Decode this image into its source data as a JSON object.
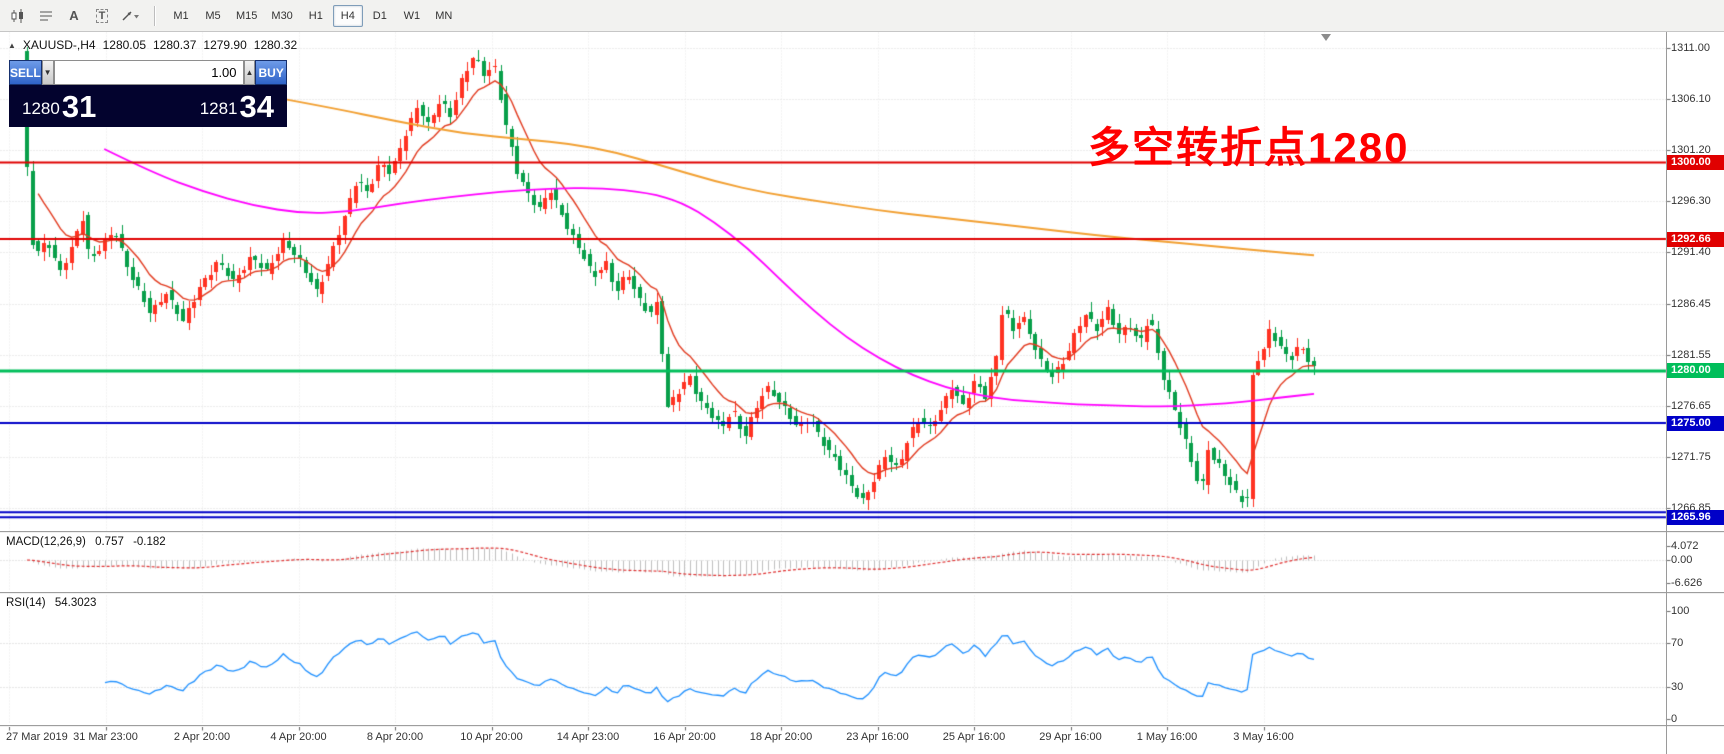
{
  "toolbar": {
    "icons": [
      {
        "name": "candlestick-chart-icon"
      },
      {
        "name": "chart-objects-icon"
      },
      {
        "name": "text-annotation-icon",
        "glyph": "A"
      },
      {
        "name": "text-label-icon",
        "glyph": "T"
      },
      {
        "name": "arrows-tool-icon"
      }
    ],
    "timeframes": [
      {
        "label": "M1"
      },
      {
        "label": "M5"
      },
      {
        "label": "M15"
      },
      {
        "label": "M30"
      },
      {
        "label": "H1"
      },
      {
        "label": "H4",
        "active": true
      },
      {
        "label": "D1"
      },
      {
        "label": "W1"
      },
      {
        "label": "MN"
      }
    ]
  },
  "chart_header": {
    "expand_glyph": "▲",
    "symbol_period": "XAUUSD-,H4",
    "open": "1280.05",
    "high": "1280.37",
    "low": "1279.90",
    "close": "1280.32"
  },
  "trade_panel": {
    "sell_label": "SELL",
    "buy_label": "BUY",
    "lot_value": "1.00",
    "caret_down": "▼",
    "caret_up": "▲",
    "bid_main": "1280",
    "bid_big": "31",
    "ask_main": "1281",
    "ask_big": "34"
  },
  "annotation": {
    "text": "多空转折点1280",
    "color": "#FF0000"
  },
  "price_axis": {
    "gridlines": [
      {
        "price": 1311.0,
        "label": "1311.00"
      },
      {
        "price": 1306.1,
        "label": "1306.10"
      },
      {
        "price": 1301.2,
        "label": "1301.20"
      },
      {
        "price": 1296.3,
        "label": "1296.30"
      },
      {
        "price": 1291.4,
        "label": "1291.40"
      },
      {
        "price": 1286.45,
        "label": "1286.45"
      },
      {
        "price": 1281.55,
        "label": "1281.55"
      },
      {
        "price": 1276.65,
        "label": "1276.65"
      },
      {
        "price": 1271.75,
        "label": "1271.75"
      },
      {
        "price": 1266.85,
        "label": "1266.85"
      }
    ],
    "tags": [
      {
        "price": 1300.0,
        "label": "1300.00",
        "color": "#E00000"
      },
      {
        "price": 1292.66,
        "label": "1292.66",
        "color": "#E00000"
      },
      {
        "price": 1280.0,
        "label": "1280.00",
        "color": "#00BE5A"
      },
      {
        "price": 1275.0,
        "label": "1275.00",
        "color": "#0000C8"
      },
      {
        "price": 1265.96,
        "label": "1265.96",
        "color": "#0000C8"
      }
    ]
  },
  "hlines": [
    {
      "price": 1300.0,
      "color": "#E00000",
      "w": 2
    },
    {
      "price": 1292.66,
      "color": "#E00000",
      "w": 2
    },
    {
      "price": 1280.0,
      "color": "#00BE5A",
      "w": 3
    },
    {
      "price": 1275.0,
      "color": "#0000C8",
      "w": 2
    },
    {
      "price": 1266.45,
      "color": "#0000C8",
      "w": 2
    },
    {
      "price": 1265.96,
      "color": "#0000C8",
      "w": 2
    }
  ],
  "macd": {
    "label": "MACD(12,26,9)",
    "value_main": "0.757",
    "value_signal": "-0.182",
    "axis": [
      {
        "v": 4.072,
        "label": "4.072"
      },
      {
        "v": 0,
        "label": "0.00"
      },
      {
        "v": -6.626,
        "label": "-6.626"
      }
    ]
  },
  "rsi": {
    "label": "RSI(14)",
    "value": "54.3023",
    "axis": [
      {
        "v": 100,
        "label": "100"
      },
      {
        "v": 70,
        "label": "70"
      },
      {
        "v": 30,
        "label": "30"
      },
      {
        "v": 0,
        "label": "0"
      }
    ],
    "levels": [
      70,
      30
    ]
  },
  "time_axis": {
    "labels": [
      "27 Mar 2019",
      "31 Mar 23:00",
      "2 Apr 20:00",
      "4 Apr 20:00",
      "8 Apr 20:00",
      "10 Apr 20:00",
      "14 Apr 23:00",
      "16 Apr 20:00",
      "18 Apr 20:00",
      "23 Apr 16:00",
      "25 Apr 16:00",
      "29 Apr 16:00",
      "1 May 16:00",
      "3 May 16:00"
    ]
  },
  "chart_data": {
    "type": "candlestick",
    "symbol": "XAUUSD-",
    "period": "H4",
    "candle_count": 232,
    "ylim": [
      1264.5,
      1312.5
    ],
    "price_path": [
      [
        0.0,
        1310.5
      ],
      [
        0.006,
        1295.0
      ],
      [
        0.01,
        1291.0
      ],
      [
        0.02,
        1292.5
      ],
      [
        0.03,
        1289.5
      ],
      [
        0.04,
        1292.0
      ],
      [
        0.047,
        1295.0
      ],
      [
        0.053,
        1290.5
      ],
      [
        0.062,
        1292.0
      ],
      [
        0.072,
        1293.5
      ],
      [
        0.082,
        1290.0
      ],
      [
        0.09,
        1288.0
      ],
      [
        0.1,
        1285.5
      ],
      [
        0.112,
        1287.5
      ],
      [
        0.125,
        1284.8
      ],
      [
        0.138,
        1288.0
      ],
      [
        0.152,
        1290.5
      ],
      [
        0.165,
        1288.5
      ],
      [
        0.178,
        1291.0
      ],
      [
        0.19,
        1289.5
      ],
      [
        0.203,
        1292.5
      ],
      [
        0.216,
        1290.5
      ],
      [
        0.229,
        1287.5
      ],
      [
        0.242,
        1292.0
      ],
      [
        0.252,
        1295.5
      ],
      [
        0.26,
        1298.5
      ],
      [
        0.268,
        1297.0
      ],
      [
        0.277,
        1300.0
      ],
      [
        0.286,
        1299.0
      ],
      [
        0.298,
        1303.0
      ],
      [
        0.307,
        1305.5
      ],
      [
        0.315,
        1303.5
      ],
      [
        0.324,
        1306.0
      ],
      [
        0.332,
        1304.5
      ],
      [
        0.341,
        1308.0
      ],
      [
        0.35,
        1310.3
      ],
      [
        0.358,
        1308.5
      ],
      [
        0.366,
        1309.3
      ],
      [
        0.375,
        1303.5
      ],
      [
        0.384,
        1299.0
      ],
      [
        0.392,
        1297.0
      ],
      [
        0.401,
        1295.5
      ],
      [
        0.409,
        1297.5
      ],
      [
        0.418,
        1295.0
      ],
      [
        0.426,
        1293.0
      ],
      [
        0.435,
        1291.0
      ],
      [
        0.443,
        1289.0
      ],
      [
        0.452,
        1290.5
      ],
      [
        0.46,
        1287.5
      ],
      [
        0.469,
        1289.5
      ],
      [
        0.477,
        1287.0
      ],
      [
        0.486,
        1285.5
      ],
      [
        0.492,
        1286.5
      ],
      [
        0.5,
        1276.5
      ],
      [
        0.508,
        1278.0
      ],
      [
        0.517,
        1279.5
      ],
      [
        0.525,
        1277.0
      ],
      [
        0.533,
        1276.0
      ],
      [
        0.542,
        1274.5
      ],
      [
        0.55,
        1276.5
      ],
      [
        0.559,
        1273.5
      ],
      [
        0.567,
        1276.0
      ],
      [
        0.576,
        1278.5
      ],
      [
        0.584,
        1277.5
      ],
      [
        0.593,
        1276.0
      ],
      [
        0.601,
        1274.5
      ],
      [
        0.61,
        1275.5
      ],
      [
        0.618,
        1273.5
      ],
      [
        0.627,
        1272.0
      ],
      [
        0.635,
        1270.5
      ],
      [
        0.644,
        1268.5
      ],
      [
        0.652,
        1267.5
      ],
      [
        0.661,
        1270.0
      ],
      [
        0.669,
        1272.0
      ],
      [
        0.678,
        1270.5
      ],
      [
        0.686,
        1273.5
      ],
      [
        0.695,
        1275.5
      ],
      [
        0.703,
        1274.5
      ],
      [
        0.712,
        1276.5
      ],
      [
        0.72,
        1278.5
      ],
      [
        0.729,
        1276.5
      ],
      [
        0.737,
        1279.0
      ],
      [
        0.746,
        1277.5
      ],
      [
        0.754,
        1281.0
      ],
      [
        0.76,
        1287.0
      ],
      [
        0.766,
        1283.5
      ],
      [
        0.774,
        1285.5
      ],
      [
        0.782,
        1283.0
      ],
      [
        0.79,
        1280.5
      ],
      [
        0.798,
        1279.5
      ],
      [
        0.807,
        1281.0
      ],
      [
        0.815,
        1283.5
      ],
      [
        0.823,
        1285.5
      ],
      [
        0.832,
        1284.0
      ],
      [
        0.84,
        1286.0
      ],
      [
        0.849,
        1283.5
      ],
      [
        0.857,
        1284.5
      ],
      [
        0.865,
        1282.5
      ],
      [
        0.873,
        1285.5
      ],
      [
        0.882,
        1280.0
      ],
      [
        0.89,
        1277.0
      ],
      [
        0.899,
        1274.0
      ],
      [
        0.907,
        1270.5
      ],
      [
        0.913,
        1268.5
      ],
      [
        0.918,
        1272.5
      ],
      [
        0.926,
        1271.0
      ],
      [
        0.934,
        1269.5
      ],
      [
        0.942,
        1267.8
      ],
      [
        0.948,
        1267.2
      ],
      [
        0.953,
        1280.5
      ],
      [
        0.961,
        1282.0
      ],
      [
        0.966,
        1284.0
      ],
      [
        0.973,
        1282.5
      ],
      [
        0.981,
        1281.0
      ],
      [
        0.989,
        1282.5
      ],
      [
        1.0,
        1280.3
      ]
    ],
    "ma_slow": [
      [
        0.182,
        1306.5
      ],
      [
        0.235,
        1305.3
      ],
      [
        0.286,
        1304.0
      ],
      [
        0.338,
        1302.8
      ],
      [
        0.389,
        1302.2
      ],
      [
        0.423,
        1301.8
      ],
      [
        0.457,
        1301.0
      ],
      [
        0.491,
        1299.8
      ],
      [
        0.534,
        1298.2
      ],
      [
        0.577,
        1297.0
      ],
      [
        0.62,
        1296.2
      ],
      [
        0.662,
        1295.4
      ],
      [
        0.705,
        1294.8
      ],
      [
        0.748,
        1294.2
      ],
      [
        0.791,
        1293.6
      ],
      [
        0.833,
        1293.0
      ],
      [
        0.876,
        1292.5
      ],
      [
        0.919,
        1292.0
      ],
      [
        0.962,
        1291.5
      ],
      [
        1.0,
        1291.1
      ]
    ],
    "ma_mid": [
      [
        0.06,
        1301.3
      ],
      [
        0.098,
        1299.0
      ],
      [
        0.137,
        1297.2
      ],
      [
        0.175,
        1295.9
      ],
      [
        0.214,
        1295.1
      ],
      [
        0.252,
        1295.3
      ],
      [
        0.291,
        1296.1
      ],
      [
        0.329,
        1296.7
      ],
      [
        0.368,
        1297.2
      ],
      [
        0.406,
        1297.5
      ],
      [
        0.444,
        1297.6
      ],
      [
        0.483,
        1297.1
      ],
      [
        0.509,
        1296.2
      ],
      [
        0.534,
        1294.3
      ],
      [
        0.56,
        1291.8
      ],
      [
        0.585,
        1288.8
      ],
      [
        0.611,
        1285.8
      ],
      [
        0.637,
        1283.2
      ],
      [
        0.662,
        1281.2
      ],
      [
        0.688,
        1279.6
      ],
      [
        0.714,
        1278.4
      ],
      [
        0.739,
        1277.7
      ],
      [
        0.765,
        1277.2
      ],
      [
        0.791,
        1277.0
      ],
      [
        0.816,
        1276.8
      ],
      [
        0.842,
        1276.7
      ],
      [
        0.868,
        1276.6
      ],
      [
        0.893,
        1276.6
      ],
      [
        0.919,
        1276.8
      ],
      [
        0.944,
        1277.0
      ],
      [
        0.97,
        1277.4
      ],
      [
        1.0,
        1277.8
      ]
    ],
    "colors": {
      "up": "#FF3222",
      "down": "#089F4A",
      "ma_fast": "#E23B20",
      "ma_mid": "#FF00FF",
      "ma_slow": "#F2A032",
      "macd_hist": "#BFBFBF",
      "macd_signal": "#E03131",
      "rsi_line": "#1E90FF"
    }
  }
}
